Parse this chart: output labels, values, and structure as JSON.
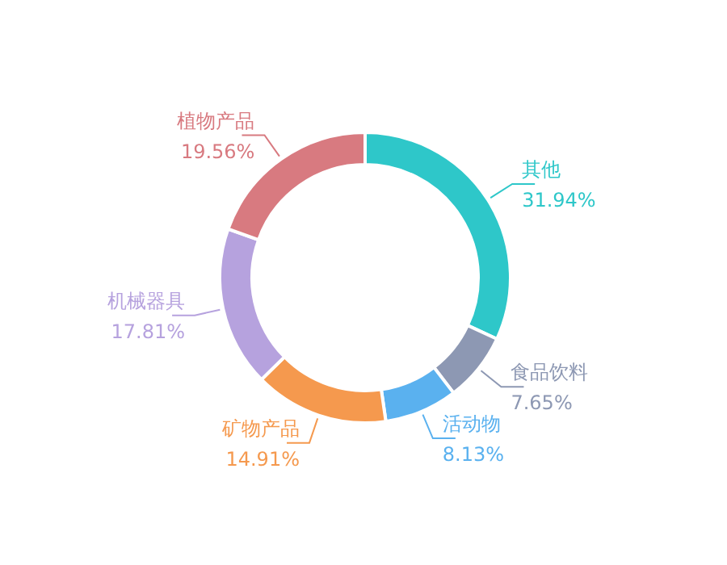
{
  "chart_data": {
    "type": "donut",
    "categories": [
      "其他",
      "食品饮料",
      "活动物",
      "矿物产品",
      "机械器具",
      "植物产品"
    ],
    "values": [
      31.94,
      7.65,
      8.13,
      14.91,
      17.81,
      19.56
    ],
    "colors": [
      "#2ec7c9",
      "#8d98b3",
      "#5ab1ef",
      "#f5994e",
      "#b6a2de",
      "#d87a80"
    ],
    "value_labels": [
      "31.94%",
      "7.65%",
      "8.13%",
      "14.91%",
      "17.81%",
      "19.56%"
    ]
  }
}
